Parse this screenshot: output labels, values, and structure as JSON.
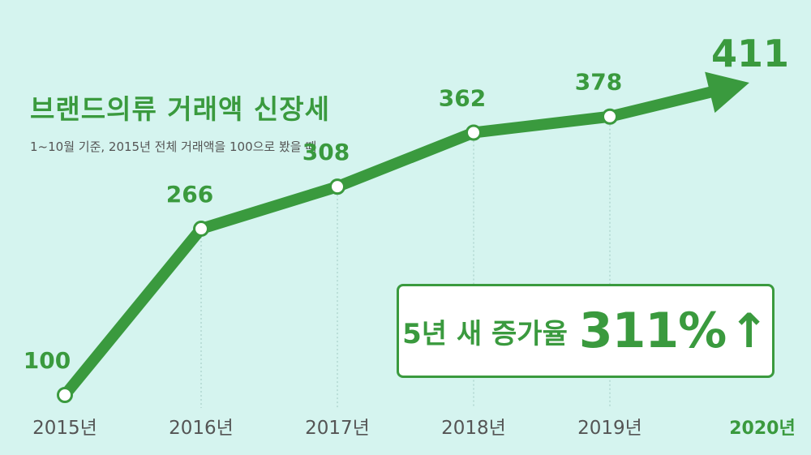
{
  "title": "브랜드의류 거래액 신장세",
  "subtitle": "1~10월 기준, 2015년 전체 거래액을 100으로 봤을 때",
  "callout": {
    "prefix": "5년 새 증가율",
    "value": "311%",
    "arrow": "↑"
  },
  "colors": {
    "line": "#3a9a3e",
    "background": "#d5f4ef",
    "axis_text": "#555555"
  },
  "chart_data": {
    "type": "line",
    "categories": [
      "2015년",
      "2016년",
      "2017년",
      "2018년",
      "2019년",
      "2020년"
    ],
    "values": [
      100,
      266,
      308,
      362,
      378,
      411
    ],
    "data_labels": [
      "100",
      "266",
      "308",
      "362",
      "378",
      "411"
    ],
    "highlight_last": true,
    "final_point_style": "arrow",
    "ylim": [
      100,
      411
    ],
    "grid": "vertical dotted lines at each category",
    "xlabel": "",
    "ylabel": ""
  }
}
